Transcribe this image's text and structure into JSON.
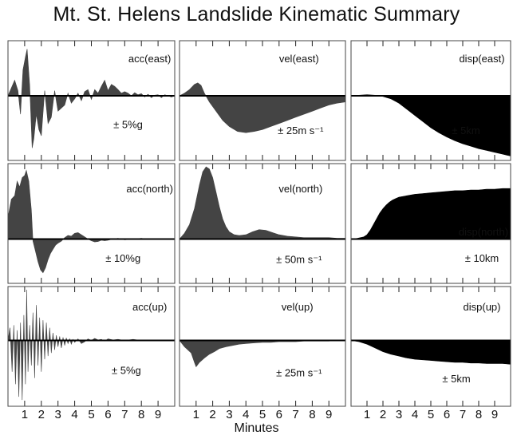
{
  "chart_data": {
    "type": "area",
    "title": "Mt. St. Helens Landslide Kinematic Summary",
    "xlabel": "Minutes",
    "x_ticks": [
      1,
      2,
      3,
      4,
      5,
      6,
      7,
      8,
      9
    ],
    "xlim": [
      0,
      10
    ],
    "panels": [
      {
        "id": "acc-east",
        "label": "acc(east)",
        "scale": "± 5%g",
        "fill": "#444444",
        "baseline": 0.46,
        "x": [
          0,
          0.2,
          0.4,
          0.6,
          0.75,
          0.9,
          1.05,
          1.15,
          1.3,
          1.45,
          1.55,
          1.7,
          1.85,
          2.0,
          2.2,
          2.4,
          2.6,
          2.8,
          3.0,
          3.2,
          3.4,
          3.6,
          3.8,
          4.0,
          4.2,
          4.4,
          4.6,
          4.8,
          5.0,
          5.2,
          5.4,
          5.6,
          5.8,
          6.0,
          6.2,
          6.4,
          6.6,
          6.8,
          7.0,
          7.2,
          7.4,
          7.6,
          7.8,
          8.0,
          8.2,
          8.4,
          8.6,
          8.8,
          9.0,
          9.2,
          9.4,
          9.6,
          9.8,
          10
        ],
        "y": [
          0,
          0.15,
          0.3,
          0.1,
          -0.3,
          0.5,
          0.75,
          0.9,
          0.2,
          -0.85,
          -0.7,
          -0.3,
          -0.55,
          -0.65,
          0.1,
          -0.45,
          -0.35,
          0.1,
          -0.25,
          -0.2,
          -0.15,
          0.05,
          -0.12,
          -0.05,
          0.05,
          -0.08,
          0.08,
          0.12,
          -0.06,
          0.12,
          0.05,
          0.18,
          0.3,
          0.1,
          0.22,
          0.18,
          0.12,
          0.05,
          0.08,
          0.05,
          0.0,
          0.06,
          0.02,
          0.04,
          -0.02,
          0.03,
          -0.03,
          0.01,
          0.02,
          -0.03,
          0.02,
          0.0,
          -0.02,
          0
        ]
      },
      {
        "id": "vel-east",
        "label": "vel(east)",
        "scale": "± 25m s⁻¹",
        "fill": "#444444",
        "baseline": 0.46,
        "x": [
          0,
          0.3,
          0.6,
          0.9,
          1.1,
          1.3,
          1.5,
          1.8,
          2.2,
          2.6,
          3.0,
          3.5,
          4.0,
          4.5,
          5.0,
          5.5,
          6.0,
          6.5,
          7.0,
          7.5,
          8.0,
          8.5,
          9.0,
          9.5,
          10
        ],
        "y": [
          0,
          0.05,
          0.12,
          0.22,
          0.25,
          0.2,
          0.05,
          -0.1,
          -0.25,
          -0.4,
          -0.5,
          -0.58,
          -0.6,
          -0.58,
          -0.55,
          -0.5,
          -0.45,
          -0.4,
          -0.35,
          -0.3,
          -0.25,
          -0.2,
          -0.15,
          -0.12,
          -0.1
        ]
      },
      {
        "id": "disp-east",
        "label": "disp(east)",
        "scale": "± 5km",
        "fill": "#000000",
        "baseline": 0.46,
        "x": [
          0,
          0.5,
          1.0,
          1.5,
          2.0,
          2.5,
          3.0,
          3.5,
          4.0,
          4.5,
          5.0,
          5.5,
          6.0,
          6.5,
          7.0,
          7.5,
          8.0,
          8.5,
          9.0,
          9.5,
          10
        ],
        "y": [
          0,
          0.01,
          0.02,
          0.01,
          -0.01,
          -0.05,
          -0.12,
          -0.22,
          -0.32,
          -0.42,
          -0.52,
          -0.6,
          -0.67,
          -0.73,
          -0.78,
          -0.82,
          -0.86,
          -0.89,
          -0.92,
          -0.95,
          -0.98
        ]
      },
      {
        "id": "acc-north",
        "label": "acc(north)",
        "scale": "± 10%g",
        "fill": "#444444",
        "baseline": 0.63,
        "x": [
          0,
          0.2,
          0.4,
          0.55,
          0.7,
          0.85,
          1.0,
          1.1,
          1.25,
          1.4,
          1.5,
          1.65,
          1.8,
          1.95,
          2.1,
          2.25,
          2.4,
          2.55,
          2.7,
          2.85,
          3.0,
          3.2,
          3.4,
          3.6,
          3.8,
          4.0,
          4.2,
          4.4,
          4.6,
          4.8,
          5.0,
          5.2,
          5.4,
          5.6,
          5.8,
          6.0,
          6.3,
          6.6,
          7.0,
          7.5,
          8.0,
          8.5,
          9.0,
          9.5,
          10
        ],
        "y": [
          0.3,
          0.55,
          0.6,
          0.8,
          0.72,
          0.85,
          0.88,
          0.95,
          0.8,
          0.4,
          -0.05,
          -0.3,
          -0.55,
          -0.75,
          -0.82,
          -0.7,
          -0.5,
          -0.35,
          -0.25,
          -0.15,
          -0.1,
          -0.05,
          0.02,
          0.05,
          0.04,
          0.08,
          0.09,
          0.06,
          0.03,
          0.0,
          -0.04,
          -0.07,
          -0.06,
          -0.03,
          -0.04,
          -0.03,
          0.0,
          0.01,
          -0.02,
          0.0,
          0.01,
          -0.01,
          0.0,
          0.0,
          0.0
        ]
      },
      {
        "id": "vel-north",
        "label": "vel(north)",
        "scale": "± 50m s⁻¹",
        "fill": "#444444",
        "baseline": 0.63,
        "x": [
          0,
          0.3,
          0.6,
          0.9,
          1.2,
          1.4,
          1.6,
          1.8,
          2.0,
          2.2,
          2.4,
          2.6,
          2.8,
          3.0,
          3.3,
          3.6,
          4.0,
          4.4,
          4.8,
          5.2,
          5.6,
          6.0,
          6.5,
          7.0,
          7.5,
          8.0,
          8.5,
          9.0,
          9.5,
          10
        ],
        "y": [
          0,
          0.08,
          0.2,
          0.42,
          0.75,
          0.93,
          1.0,
          0.97,
          0.85,
          0.65,
          0.45,
          0.28,
          0.17,
          0.1,
          0.06,
          0.05,
          0.06,
          0.1,
          0.13,
          0.12,
          0.09,
          0.06,
          0.04,
          0.03,
          0.02,
          0.02,
          0.02,
          0.02,
          0.01,
          0.01
        ]
      },
      {
        "id": "disp-north",
        "label": "disp(north)",
        "scale": "± 10km",
        "fill": "#000000",
        "baseline": 0.63,
        "x": [
          0,
          0.4,
          0.8,
          1.0,
          1.2,
          1.4,
          1.6,
          1.8,
          2.0,
          2.2,
          2.4,
          2.6,
          2.8,
          3.0,
          3.5,
          4.0,
          4.5,
          5.0,
          5.5,
          6.0,
          6.5,
          7.0,
          7.5,
          8.0,
          8.5,
          9.0,
          9.5,
          10
        ],
        "y": [
          0,
          0.01,
          0.03,
          0.06,
          0.12,
          0.2,
          0.28,
          0.36,
          0.42,
          0.47,
          0.51,
          0.54,
          0.56,
          0.58,
          0.6,
          0.62,
          0.63,
          0.64,
          0.65,
          0.66,
          0.67,
          0.67,
          0.68,
          0.68,
          0.69,
          0.69,
          0.7,
          0.7
        ]
      },
      {
        "id": "acc-up",
        "label": "acc(up)",
        "scale": "± 5%g",
        "fill": "#444444",
        "baseline": 0.45,
        "x": [
          0,
          0.12,
          0.25,
          0.35,
          0.45,
          0.55,
          0.65,
          0.75,
          0.85,
          0.95,
          1.05,
          1.12,
          1.2,
          1.3,
          1.4,
          1.5,
          1.6,
          1.7,
          1.8,
          1.9,
          2.0,
          2.1,
          2.2,
          2.3,
          2.4,
          2.5,
          2.6,
          2.7,
          2.8,
          2.9,
          3.0,
          3.1,
          3.2,
          3.3,
          3.4,
          3.5,
          3.6,
          3.7,
          3.8,
          3.9,
          4.0,
          4.2,
          4.4,
          4.6,
          4.8,
          5.0,
          5.2,
          5.4,
          5.6,
          5.8,
          6.0,
          6.3,
          6.6,
          7.0,
          7.5,
          8.0,
          8.5,
          9.0,
          9.5,
          10
        ],
        "y": [
          0,
          0.25,
          -0.5,
          0.3,
          -0.7,
          0.2,
          -0.9,
          0.35,
          -0.95,
          0.5,
          -0.7,
          1.0,
          -0.5,
          0.3,
          -0.4,
          0.55,
          -0.6,
          0.7,
          -0.4,
          0.45,
          -0.5,
          0.4,
          -0.3,
          0.35,
          -0.25,
          0.25,
          -0.2,
          0.15,
          -0.15,
          0.1,
          -0.1,
          0.08,
          -0.12,
          0.06,
          -0.08,
          0.05,
          -0.05,
          0.03,
          -0.06,
          0.02,
          -0.03,
          0.03,
          -0.05,
          -0.02,
          0.03,
          0.0,
          0.04,
          0.01,
          0.02,
          -0.01,
          0.03,
          0.01,
          0.02,
          0.0,
          0.02,
          0.0,
          0.01,
          0.0,
          0.0,
          0.0
        ]
      },
      {
        "id": "vel-up",
        "label": "vel(up)",
        "scale": "± 25m s⁻¹",
        "fill": "#444444",
        "baseline": 0.45,
        "x": [
          0,
          0.3,
          0.5,
          0.7,
          0.9,
          1.0,
          1.2,
          1.5,
          1.8,
          2.1,
          2.4,
          2.8,
          3.2,
          3.6,
          4.0,
          4.5,
          5.0,
          5.5,
          6.0,
          6.5,
          7.0,
          7.5,
          8.0,
          8.5,
          9.0,
          9.5,
          10
        ],
        "y": [
          0,
          -0.1,
          -0.15,
          -0.2,
          -0.35,
          -0.42,
          -0.35,
          -0.28,
          -0.22,
          -0.18,
          -0.13,
          -0.1,
          -0.08,
          -0.06,
          -0.05,
          -0.04,
          -0.03,
          -0.03,
          -0.02,
          -0.02,
          -0.02,
          -0.01,
          -0.01,
          -0.01,
          -0.01,
          0.0,
          0.0
        ]
      },
      {
        "id": "disp-up",
        "label": "disp(up)",
        "scale": "± 5km",
        "fill": "#000000",
        "baseline": 0.45,
        "x": [
          0,
          0.5,
          1.0,
          1.5,
          2.0,
          2.5,
          3.0,
          3.5,
          4.0,
          4.5,
          5.0,
          5.5,
          6.0,
          6.5,
          7.0,
          7.5,
          8.0,
          8.5,
          9.0,
          9.5,
          10
        ],
        "y": [
          0,
          -0.02,
          -0.06,
          -0.12,
          -0.18,
          -0.22,
          -0.25,
          -0.28,
          -0.3,
          -0.31,
          -0.32,
          -0.33,
          -0.34,
          -0.35,
          -0.35,
          -0.36,
          -0.36,
          -0.37,
          -0.37,
          -0.37,
          -0.38
        ]
      }
    ]
  }
}
